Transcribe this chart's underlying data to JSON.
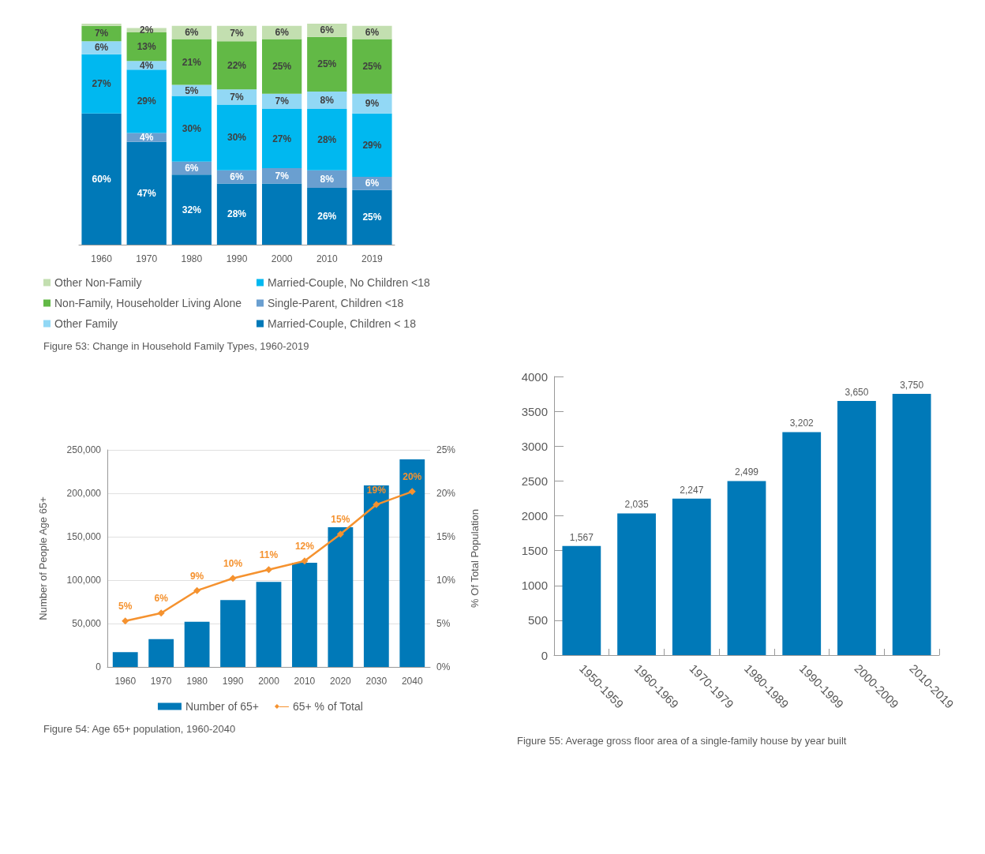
{
  "chart_data": [
    {
      "type": "bar",
      "title": "Figure 53: Change in Household Family Types, 1960-2019",
      "categories": [
        "1960",
        "1970",
        "1980",
        "1990",
        "2000",
        "2010",
        "2019"
      ],
      "stacked": true,
      "tick_labels": "x",
      "legend": "bottom",
      "series": [
        {
          "name": "Married-Couple, Children < 18",
          "color": "#0079b8",
          "values": [
            60,
            47,
            32,
            28,
            28,
            26,
            25
          ],
          "value_labels": [
            "60%",
            "47%",
            "32%",
            "28%",
            null,
            "26%",
            "25%"
          ]
        },
        {
          "name": "Single-Parent, Children <18",
          "color": "#6a9fd0",
          "values": [
            null,
            4,
            6,
            6,
            7,
            8,
            6
          ],
          "value_labels": [
            null,
            "4%",
            "6%",
            "6%",
            "7%",
            "8%",
            "6%"
          ]
        },
        {
          "name": "Married-Couple, No Children <18",
          "color": "#00b8f0",
          "values": [
            27,
            29,
            30,
            30,
            27,
            28,
            29
          ],
          "value_labels": [
            "27%",
            "29%",
            "30%",
            "30%",
            "27%",
            "28%",
            "29%"
          ]
        },
        {
          "name": "Other Family",
          "color": "#92d8f5",
          "values": [
            6,
            4,
            5,
            7,
            7,
            8,
            9
          ],
          "value_labels": [
            "6%",
            "4%",
            "5%",
            "7%",
            "7%",
            "8%",
            "9%"
          ]
        },
        {
          "name": "Non-Family, Householder Living Alone",
          "color": "#62b946",
          "values": [
            7,
            13,
            21,
            22,
            25,
            25,
            25
          ],
          "value_labels": [
            "7%",
            "13%",
            "21%",
            "22%",
            "25%",
            "25%",
            "25%"
          ]
        },
        {
          "name": "Other Non-Family",
          "color": "#c3dfb0",
          "values": [
            1,
            2,
            6,
            7,
            6,
            6,
            6
          ],
          "value_labels": [
            null,
            "2%",
            "6%",
            "7%",
            "6%",
            "6%",
            "6%"
          ]
        }
      ]
    },
    {
      "type": "bar",
      "title": "Figure 54: Age 65+ population, 1960-2040",
      "ylabel": "Number of People Age 65+",
      "y2label": "% Of Total Population",
      "categories": [
        "1960",
        "1970",
        "1980",
        "1990",
        "2000",
        "2010",
        "2020",
        "2030",
        "2040"
      ],
      "ylim": [
        0,
        250000
      ],
      "yticks": [
        {
          "value": 0,
          "label": "0"
        },
        {
          "value": 50000,
          "label": "50,000"
        },
        {
          "value": 100000,
          "label": "100,000"
        },
        {
          "value": 150000,
          "label": "150,000"
        },
        {
          "value": 200000,
          "label": "200,000"
        },
        {
          "value": 250000,
          "label": "250,000"
        }
      ],
      "y2lim": [
        0,
        25
      ],
      "y2ticks": [
        {
          "value": 0,
          "label": "0%"
        },
        {
          "value": 5,
          "label": "5%"
        },
        {
          "value": 10,
          "label": "10%"
        },
        {
          "value": 15,
          "label": "15%"
        },
        {
          "value": 20,
          "label": "20%"
        },
        {
          "value": 25,
          "label": "25%"
        }
      ],
      "grid": "y",
      "legend": "bottom",
      "series": [
        {
          "name": "Number of 65+",
          "color": "#0079b8",
          "values": [
            17000,
            32000,
            52000,
            77000,
            98000,
            120000,
            161000,
            209000,
            239000
          ]
        },
        {
          "name": "65+ % of Total",
          "type": "line",
          "axis": "y2",
          "color": "#f5922f",
          "marker": "diamond",
          "values": [
            5.3,
            6.2,
            8.8,
            10.2,
            11.2,
            12.2,
            15.3,
            18.7,
            20.2
          ],
          "value_labels": [
            "5%",
            "6%",
            "9%",
            "10%",
            "11%",
            "12%",
            "15%",
            "19%",
            "20%"
          ]
        }
      ]
    },
    {
      "type": "bar",
      "title": "Figure 55: Average gross floor area of a single-family house by year built",
      "categories": [
        "1950-1959",
        "1960-1969",
        "1970-1979",
        "1980-1989",
        "1990-1999",
        "2000-2009",
        "2010-2019"
      ],
      "ylim": [
        0,
        4000
      ],
      "yticks": [
        0,
        500,
        1000,
        1500,
        2000,
        2500,
        3000,
        3500,
        4000
      ],
      "series": [
        {
          "color": "#0079b8",
          "values": [
            1567,
            2035,
            2247,
            2499,
            3202,
            3650,
            3750
          ],
          "value_labels": [
            "1,567",
            "2,035",
            "2,247",
            "2,499",
            "3,202",
            "3,650",
            "3,750"
          ]
        }
      ]
    }
  ]
}
